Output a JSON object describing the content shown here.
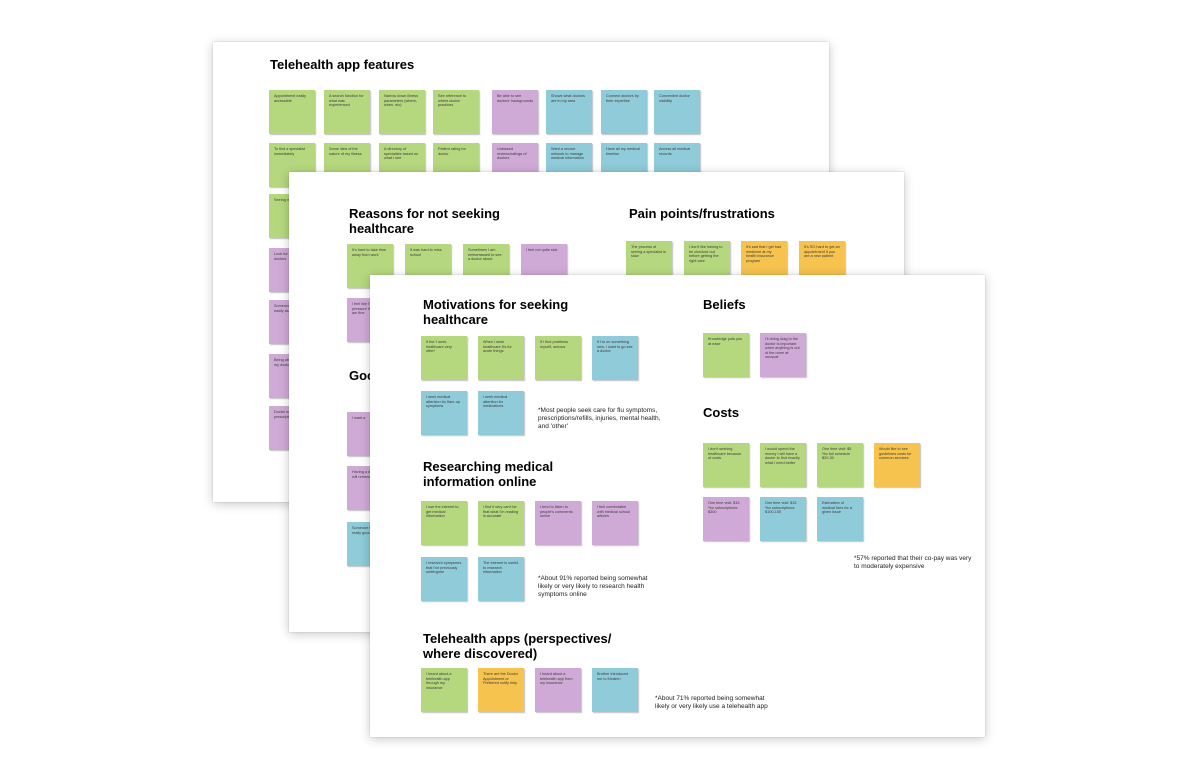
{
  "boards": {
    "features": {
      "title": "Telehealth app features",
      "notes": [
        "Appointment easily accessible",
        "A search function for what was experienced",
        "Narrow down illness parameters (where, when, etc)",
        "See reference to where doctor practices",
        "Be able to see doctors' backgrounds",
        "Shows what doctors are in my area",
        "Connect doctors by their expertise",
        "Convenient doctor visibility",
        "To find a specialist immediately",
        "Some idea of the nature of my illness",
        "A directory of specialists based on what I see",
        "Patient rating for doctor",
        "Unbiased reviews/ratings of doctors",
        "Want a secure network to manage medical information",
        "Have all my medical timeline",
        "Access all medical records",
        "Seeing my doctor",
        "Look for local doctors",
        "Someone I can easily ask",
        "Being able to contact my doctor",
        "Doctor writes prescriptions"
      ]
    },
    "reasons": {
      "title": "Reasons for not seeking healthcare",
      "notes": [
        "It's hard to take time away from work",
        "It was hard to miss school",
        "Sometimes I am embarrassed to see a doctor about",
        "I feel not quite sick",
        "I feel like I'm putting pressure if I really am fine"
      ],
      "pain_title": "Pain points/frustrations",
      "pain_notes": [
        "The process of seeing a specialist is slow",
        "I don't like having to be checked out before getting the right care",
        "It's sad that I get bad medicine at my health insurance program",
        "It's SO hard to get an appointment if you are a new patient"
      ],
      "good_title": "Good experiences when seeking healthcare",
      "good_title_visible": "Goo see",
      "good_notes": [
        "I want a",
        "Having a doctor that will remember",
        "Someone to make it really good"
      ]
    },
    "motivations": {
      "title": "Motivations for seeking healthcare",
      "notes": [
        "If the 'I seek healthcare very often'",
        "When I seek healthcare it's for acute things",
        "If I find problems myself, serious",
        "If I'm on something new, I want to go see a doctor",
        "I seek medical attention for flare-up symptoms",
        "I seek medical attention for medications"
      ],
      "motivations_footnote": "*Most people seek care for flu symptoms, prescriptions/refills, injuries, mental health, and 'other'",
      "research_title": "Researching medical information online",
      "research_notes": [
        "I use the internet to get medical information",
        "I find it very can't be that what I'm reading is accurate",
        "I tend to listen to people's comments online",
        "I feel comfortable with medical school articles",
        "I research symptoms that I've previously undergone",
        "The internet is useful to research information"
      ],
      "research_footnote": "*About 91% reported being somewhat likely or very likely to research health symptoms online",
      "apps_title": "Telehealth apps (perspectives/ where discovered)",
      "apps_notes": [
        "I heard about a telehealth app through my insurance",
        "There are the Doctor Appointment or Preferred notify help",
        "I heard about a telehealth app from my insurance",
        "Brother introduced me to Modern"
      ],
      "apps_footnote": "*About 71% reported being somewhat likely or very likely use a telehealth app",
      "beliefs_title": "Beliefs",
      "beliefs_notes": [
        "Knowledge puts you at ease",
        "I'll doing drag to the doctor is important when anything is out of the norm at unusual"
      ],
      "costs_title": "Costs",
      "costs_notes": [
        "I don't seeking healthcare because of costs",
        "I would spend the money I will have a doctor to find exactly what I need better",
        "One time visit: $5 *for full schedule $20-30",
        "Would like to see guidelines costs for common services",
        "One time visit: $15 *for subscriptions: $300",
        "One time visit: $15 *for subscriptions: $100-150",
        "Estimation of medical fees for a given issue"
      ],
      "costs_footnote": "*57% reported that their co-pay was very to moderately expensive"
    }
  }
}
